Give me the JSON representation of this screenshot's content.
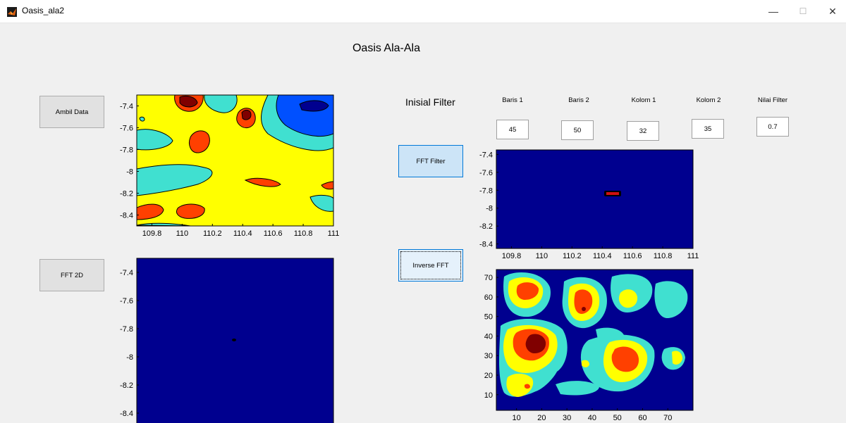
{
  "window": {
    "title": "Oasis_ala2",
    "minimize": "—",
    "maximize": "☐",
    "close": "✕"
  },
  "figure_title": "Oasis Ala-Ala",
  "buttons": {
    "ambil_data": "Ambil Data",
    "fft_2d": "FFT 2D",
    "fft_filter": "FFT Filter",
    "inverse_fft": "Inverse FFT"
  },
  "filter": {
    "heading": "Inisial Filter",
    "fields": [
      {
        "label": "Baris 1",
        "value": "45"
      },
      {
        "label": "Baris 2",
        "value": "50"
      },
      {
        "label": "Kolom 1",
        "value": "32"
      },
      {
        "label": "Kolom 2",
        "value": "35"
      },
      {
        "label": "Nilai Filter",
        "value": "0.7"
      }
    ]
  },
  "colors": {
    "dark_blue": "#00008f",
    "blue": "#0050ff",
    "cyan": "#40e0d0",
    "yellow": "#ffff00",
    "orange_red": "#ff4000",
    "dark_red": "#800000"
  },
  "chart_data": [
    {
      "type": "heatmap",
      "name": "raw-data-contour",
      "xlim": [
        109.7,
        111
      ],
      "ylim": [
        -8.5,
        -7.3
      ],
      "x_ticks": [
        "109.8",
        "110",
        "110.2",
        "110.4",
        "110.6",
        "110.8",
        "111"
      ],
      "y_ticks": [
        "-7.4",
        "-7.6",
        "-7.8",
        "-8",
        "-8.2",
        "-8.4"
      ]
    },
    {
      "type": "heatmap",
      "name": "fft-2d",
      "xlim": [
        0,
        1
      ],
      "ylim": [
        -8.5,
        -7.3
      ],
      "x_ticks": [],
      "y_ticks": [
        "-7.4",
        "-7.6",
        "-7.8",
        "-8",
        "-8.2",
        "-8.4"
      ]
    },
    {
      "type": "heatmap",
      "name": "fft-filter",
      "xlim": [
        109.7,
        111
      ],
      "ylim": [
        -8.45,
        -7.35
      ],
      "x_ticks": [
        "109.8",
        "110",
        "110.2",
        "110.4",
        "110.6",
        "110.8",
        "111"
      ],
      "y_ticks": [
        "-7.4",
        "-7.6",
        "-7.8",
        "-8",
        "-8.2",
        "-8.4"
      ]
    },
    {
      "type": "heatmap",
      "name": "inverse-fft",
      "xlim": [
        2,
        80
      ],
      "ylim": [
        2,
        74
      ],
      "x_ticks": [
        "10",
        "20",
        "30",
        "40",
        "50",
        "60",
        "70"
      ],
      "y_ticks": [
        "10",
        "20",
        "30",
        "40",
        "50",
        "60",
        "70"
      ]
    }
  ]
}
